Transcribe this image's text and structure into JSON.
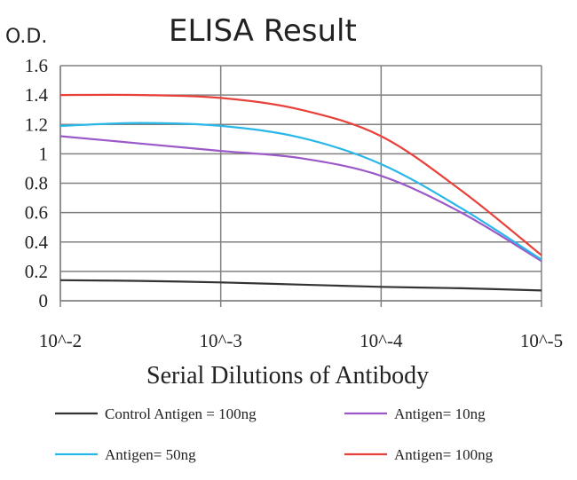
{
  "chart_data": {
    "type": "line",
    "title": "ELISA Result",
    "ylabel": "O.D.",
    "xlabel": "Serial Dilutions of Antibody",
    "categories": [
      "10^-2",
      "10^-3",
      "10^-4",
      "10^-5"
    ],
    "ylim": [
      0,
      1.6
    ],
    "yticks": [
      "0",
      "0.2",
      "0.4",
      "0.6",
      "0.8",
      "1",
      "1.2",
      "1.4",
      "1.6"
    ],
    "grid": "vertical and horizontal",
    "legend_position": "bottom",
    "series": [
      {
        "name": "Control Antigen = 100ng",
        "color": "#333333",
        "x": [
          0,
          0.5,
          1,
          1.5,
          2,
          2.5,
          3
        ],
        "y": [
          0.14,
          0.135,
          0.125,
          0.11,
          0.095,
          0.085,
          0.07
        ]
      },
      {
        "name": "Antigen= 10ng",
        "color": "#9b59c8",
        "x": [
          0,
          0.5,
          1,
          1.5,
          2,
          2.5,
          3
        ],
        "y": [
          1.12,
          1.07,
          1.02,
          0.97,
          0.85,
          0.6,
          0.27
        ]
      },
      {
        "name": "Antigen= 50ng",
        "color": "#29b6e8",
        "x": [
          0,
          0.5,
          1,
          1.5,
          2,
          2.5,
          3
        ],
        "y": [
          1.19,
          1.21,
          1.19,
          1.11,
          0.93,
          0.63,
          0.28
        ]
      },
      {
        "name": "Antigen= 100ng",
        "color": "#e8403a",
        "x": [
          0,
          0.5,
          1,
          1.5,
          2,
          2.5,
          3
        ],
        "y": [
          1.4,
          1.4,
          1.38,
          1.3,
          1.12,
          0.75,
          0.31
        ]
      }
    ]
  }
}
